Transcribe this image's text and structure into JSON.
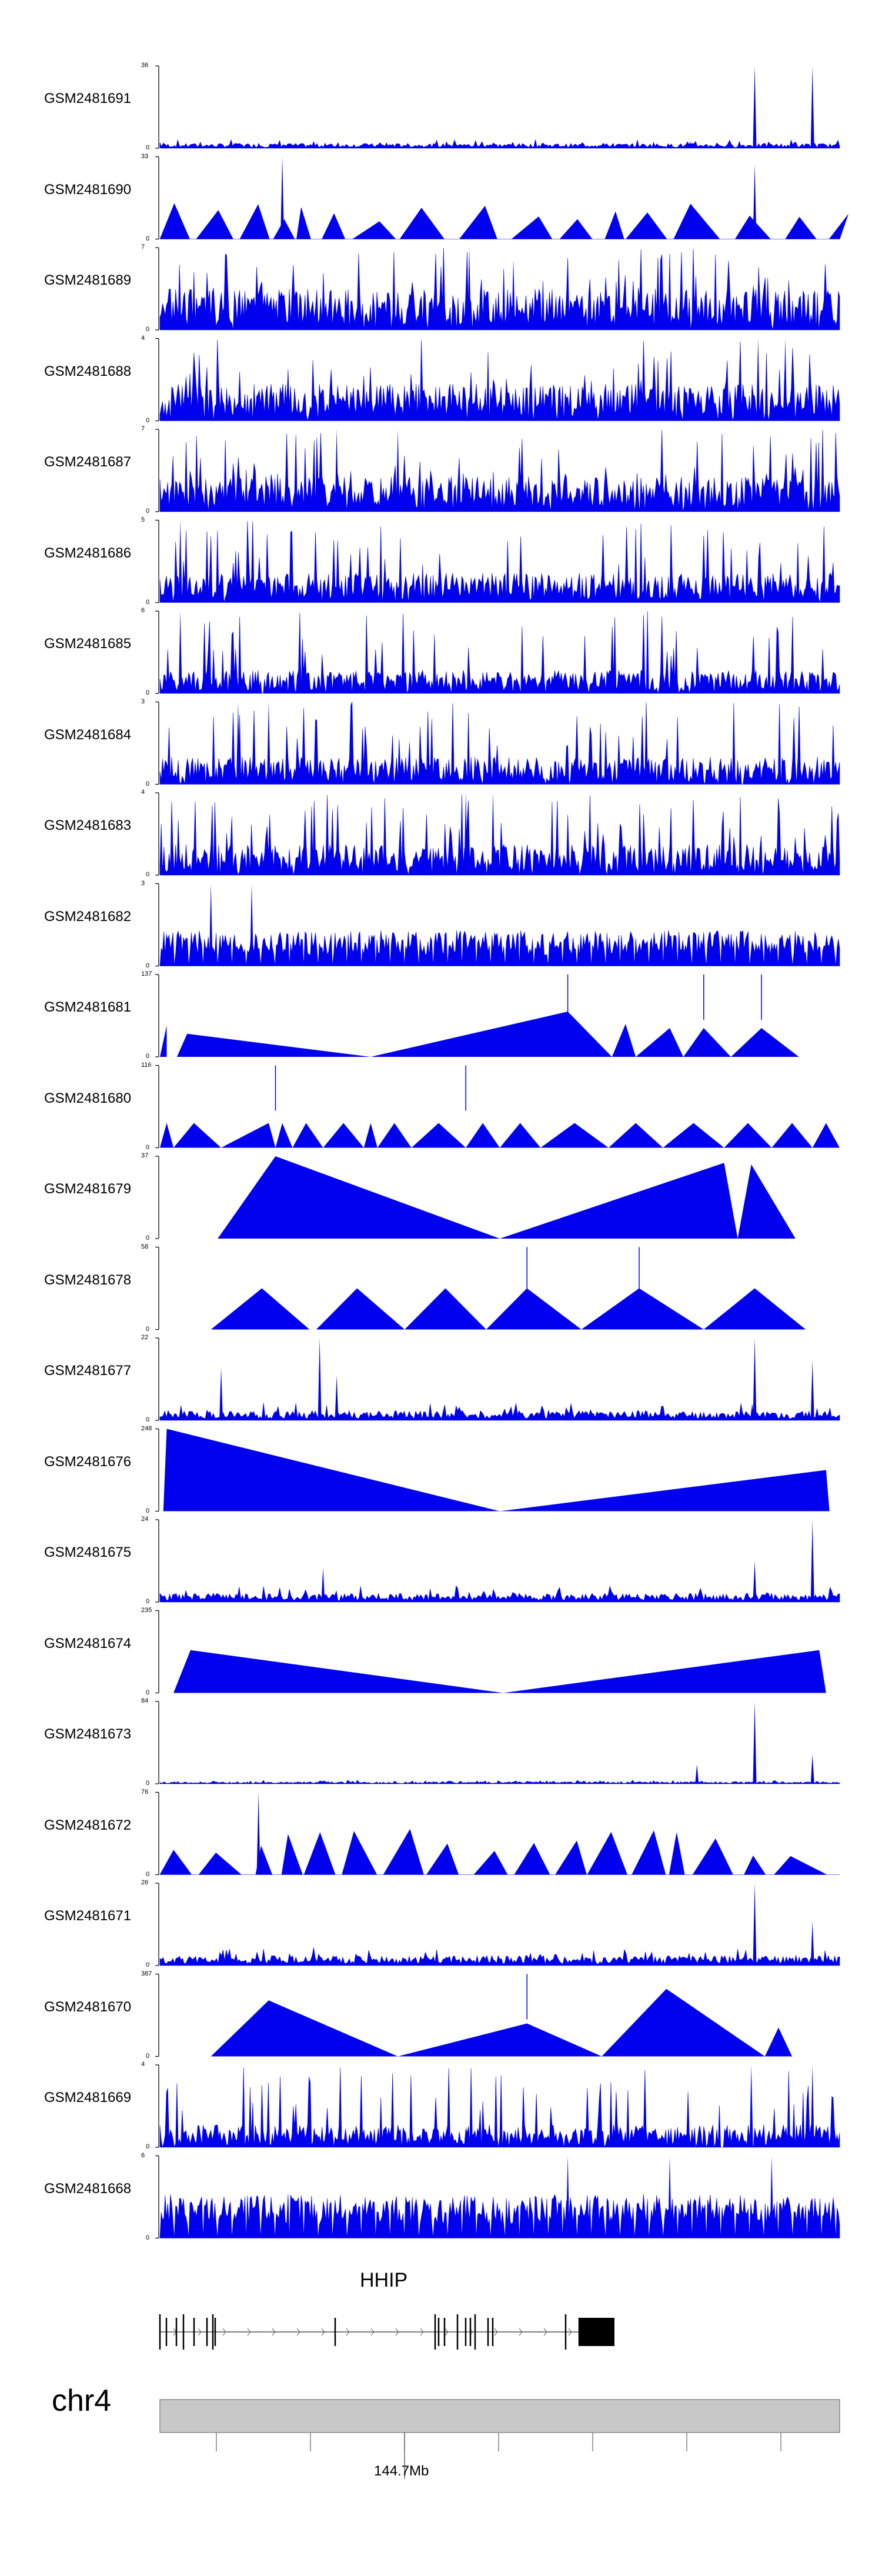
{
  "chart_data": {
    "type": "area",
    "axis_min_label": "0",
    "tracks": [
      {
        "name": "GSM2481691",
        "max": "36",
        "ymax": 36,
        "pattern": "spiky-sparse",
        "level": 2.0,
        "peaks": [
          [
            0.875,
            36
          ],
          [
            0.96,
            36
          ],
          [
            0.78,
            3
          ]
        ]
      },
      {
        "name": "GSM2481690",
        "max": "33",
        "ymax": 33,
        "pattern": "triangles",
        "level": 10.0,
        "peaks": [
          [
            0.18,
            33
          ],
          [
            0.875,
            30
          ],
          [
            0.47,
            9
          ]
        ]
      },
      {
        "name": "GSM2481689",
        "max": "7",
        "ymax": 7,
        "pattern": "dense",
        "level": 3.5,
        "peaks": [
          [
            0.455,
            7
          ],
          [
            0.52,
            6
          ]
        ]
      },
      {
        "name": "GSM2481688",
        "max": "4",
        "ymax": 4,
        "pattern": "dense",
        "level": 1.8,
        "peaks": [
          [
            0.88,
            4
          ],
          [
            0.92,
            4
          ]
        ]
      },
      {
        "name": "GSM2481687",
        "max": "7",
        "ymax": 7,
        "pattern": "dense",
        "level": 3.0,
        "peaks": [
          [
            0.26,
            7
          ],
          [
            0.35,
            7
          ]
        ]
      },
      {
        "name": "GSM2481686",
        "max": "5",
        "ymax": 5,
        "pattern": "dense",
        "level": 1.8,
        "peaks": [
          [
            0.03,
            5
          ]
        ]
      },
      {
        "name": "GSM2481685",
        "max": "6",
        "ymax": 6,
        "pattern": "dense",
        "level": 1.7,
        "peaks": [
          [
            0.03,
            6
          ]
        ]
      },
      {
        "name": "GSM2481684",
        "max": "3",
        "ymax": 3,
        "pattern": "dense",
        "level": 1.0,
        "peaks": [
          [
            0.115,
            3
          ],
          [
            0.16,
            3
          ]
        ]
      },
      {
        "name": "GSM2481683",
        "max": "4",
        "ymax": 4,
        "pattern": "dense",
        "level": 1.5,
        "peaks": [
          [
            0.45,
            4
          ],
          [
            0.49,
            4
          ]
        ]
      },
      {
        "name": "GSM2481682",
        "max": "3",
        "ymax": 3,
        "pattern": "dense-tri",
        "level": 1.3,
        "peaks": [
          [
            0.075,
            3
          ],
          [
            0.135,
            3
          ]
        ]
      },
      {
        "name": "GSM2481681",
        "max": "137",
        "ymax": 137,
        "pattern": "big-tri",
        "level": 0,
        "peaks": [
          [
            0.6,
            137
          ],
          [
            0.8,
            137
          ],
          [
            0.885,
            137
          ]
        ]
      },
      {
        "name": "GSM2481680",
        "max": "116",
        "ymax": 116,
        "pattern": "big-tri",
        "level": 0,
        "peaks": [
          [
            0.17,
            116
          ],
          [
            0.45,
            116
          ]
        ]
      },
      {
        "name": "GSM2481679",
        "max": "37",
        "ymax": 37,
        "pattern": "big-tri",
        "level": 0,
        "peaks": []
      },
      {
        "name": "GSM2481678",
        "max": "58",
        "ymax": 58,
        "pattern": "big-tri",
        "level": 0,
        "peaks": [
          [
            0.54,
            58
          ],
          [
            0.705,
            58
          ]
        ]
      },
      {
        "name": "GSM2481677",
        "max": "22",
        "ymax": 22,
        "pattern": "spiky-sparse",
        "level": 2.5,
        "peaks": [
          [
            0.235,
            22
          ],
          [
            0.875,
            22
          ],
          [
            0.96,
            16
          ],
          [
            0.09,
            14
          ],
          [
            0.26,
            12
          ]
        ]
      },
      {
        "name": "GSM2481676",
        "max": "248",
        "ymax": 248,
        "pattern": "big-tri",
        "level": 0,
        "peaks": []
      },
      {
        "name": "GSM2481675",
        "max": "24",
        "ymax": 24,
        "pattern": "spiky-sparse",
        "level": 2.5,
        "peaks": [
          [
            0.96,
            24
          ],
          [
            0.875,
            12
          ],
          [
            0.24,
            10
          ]
        ]
      },
      {
        "name": "GSM2481674",
        "max": "235",
        "ymax": 235,
        "pattern": "big-tri",
        "level": 0,
        "peaks": []
      },
      {
        "name": "GSM2481673",
        "max": "84",
        "ymax": 84,
        "pattern": "spiky-sparse",
        "level": 2.0,
        "peaks": [
          [
            0.875,
            84
          ],
          [
            0.96,
            30
          ],
          [
            0.79,
            20
          ]
        ]
      },
      {
        "name": "GSM2481672",
        "max": "76",
        "ymax": 76,
        "pattern": "triangles",
        "level": 28.0,
        "peaks": [
          [
            0.145,
            76
          ]
        ]
      },
      {
        "name": "GSM2481671",
        "max": "26",
        "ymax": 26,
        "pattern": "spiky-sparse",
        "level": 3.0,
        "peaks": [
          [
            0.875,
            26
          ],
          [
            0.96,
            14
          ]
        ]
      },
      {
        "name": "GSM2481670",
        "max": "387",
        "ymax": 387,
        "pattern": "big-tri",
        "level": 0,
        "peaks": [
          [
            0.54,
            387
          ]
        ]
      },
      {
        "name": "GSM2481669",
        "max": "4",
        "ymax": 4,
        "pattern": "dense",
        "level": 1.1,
        "peaks": [
          [
            0.87,
            4
          ],
          [
            0.96,
            4
          ]
        ]
      },
      {
        "name": "GSM2481668",
        "max": "6",
        "ymax": 6,
        "pattern": "dense-tri",
        "level": 3.2,
        "peaks": [
          [
            0.6,
            6
          ],
          [
            0.75,
            6
          ],
          [
            0.9,
            6
          ]
        ]
      }
    ],
    "gene": {
      "name": "HHIP"
    },
    "chromosome": {
      "name": "chr4",
      "position_label": "144.7Mb"
    },
    "colors": {
      "signal": "#0000ee",
      "axis": "#000000",
      "ideogram_fill": "#c8c8c8",
      "ideogram_stroke": "#8a8a8a"
    }
  }
}
